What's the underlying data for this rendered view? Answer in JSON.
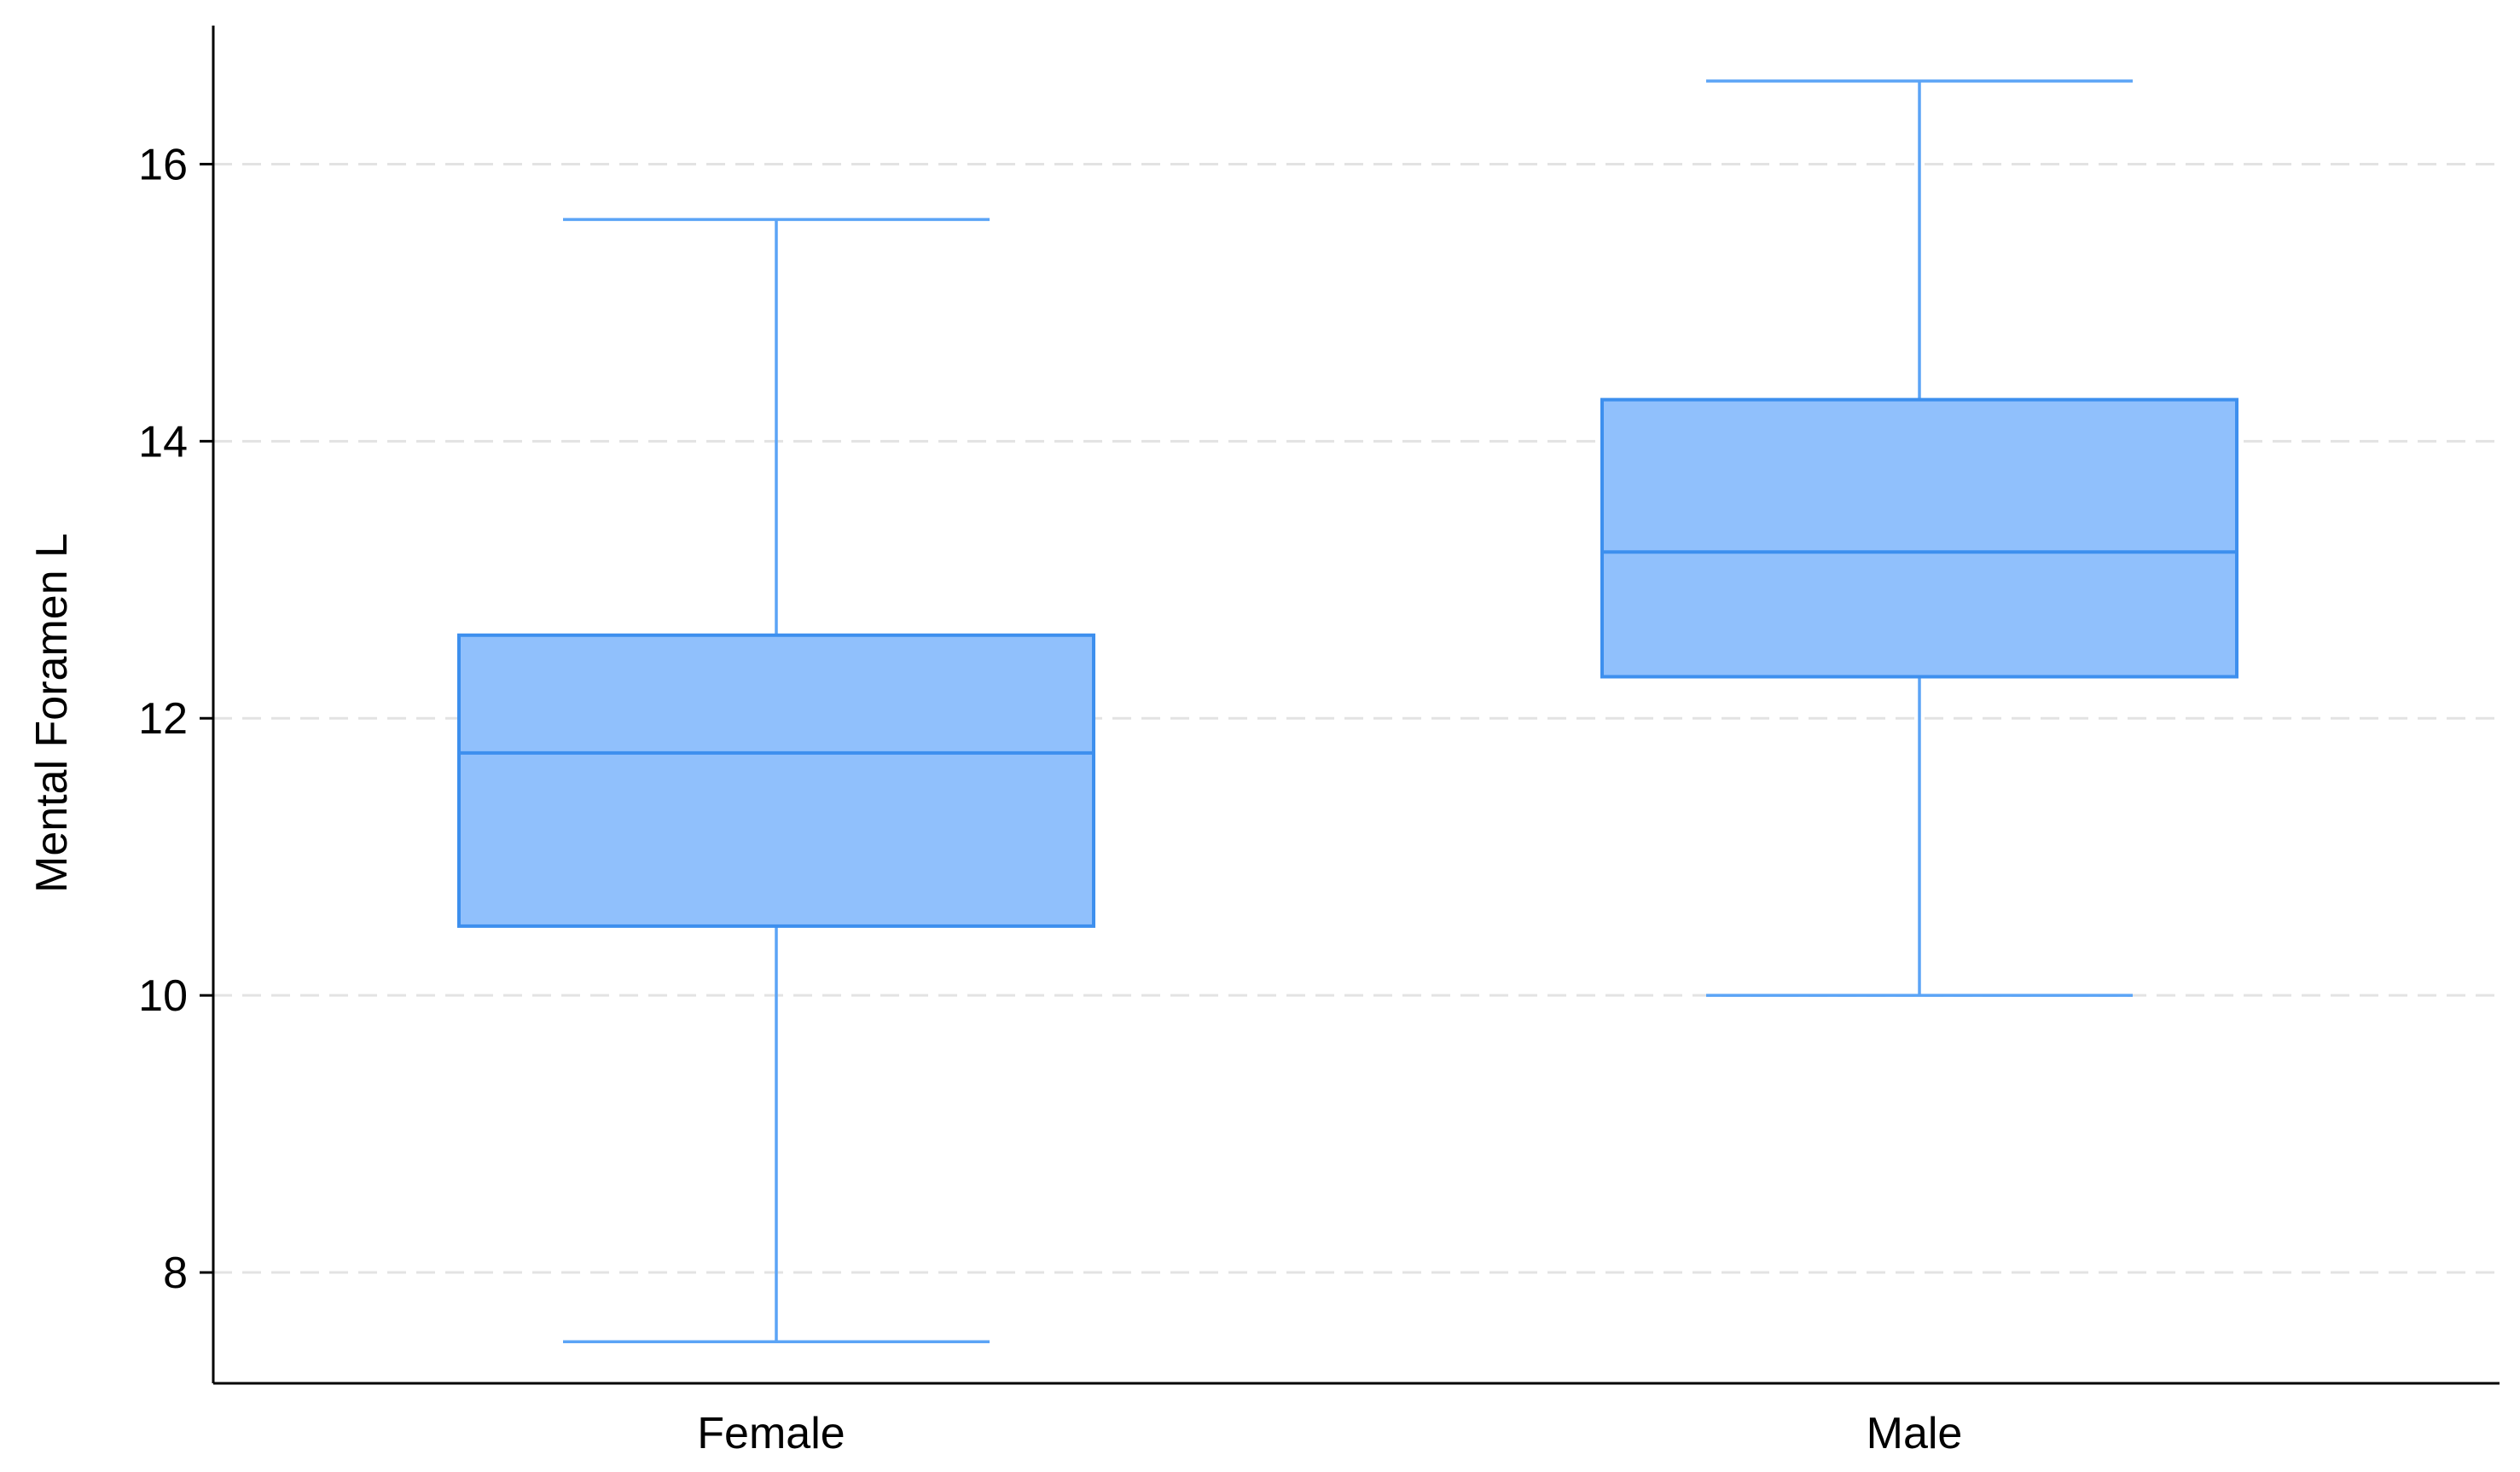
{
  "chart_data": {
    "type": "box",
    "ylabel": "Mental Foramen L",
    "xlabel": "",
    "ylim": [
      7.2,
      17
    ],
    "yticks": [
      8,
      10,
      12,
      14,
      16
    ],
    "grid": "horizontal dashed",
    "categories": [
      "Female",
      "Male"
    ],
    "boxes": [
      {
        "category": "Female",
        "min": 7.5,
        "q1": 10.5,
        "median": 11.75,
        "q3": 12.6,
        "max": 15.6
      },
      {
        "category": "Male",
        "min": 10.0,
        "q1": 12.3,
        "median": 13.2,
        "q3": 14.3,
        "max": 16.6
      }
    ],
    "colors": {
      "box_fill": "#90c0fc",
      "box_stroke": "#3d8fee",
      "whisker": "#5ba4f6",
      "grid": "#e3e3e3",
      "axis": "#000000"
    }
  }
}
